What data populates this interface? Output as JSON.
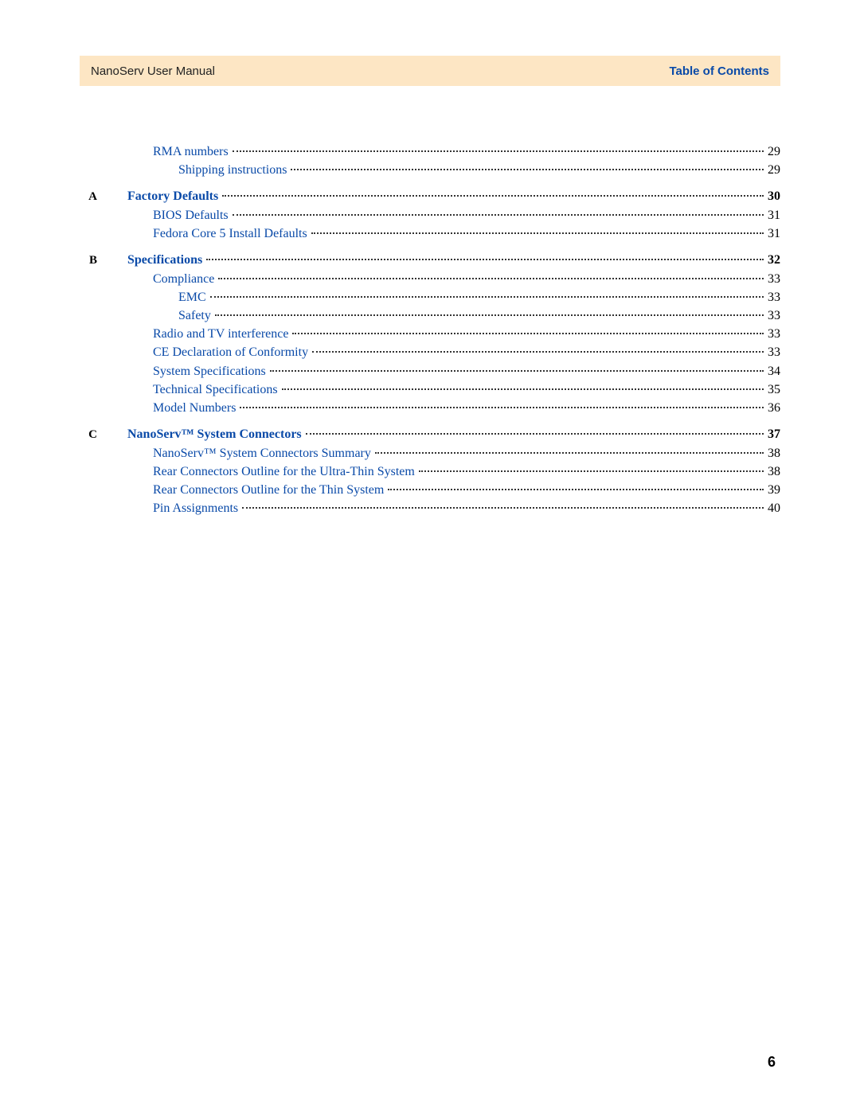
{
  "header": {
    "left": "NanoServ User Manual",
    "right": "Table of Contents"
  },
  "colors": {
    "header_band_bg": "#fde6c4",
    "link_color": "#0a4aa8",
    "text_color": "#000000",
    "page_bg": "#ffffff"
  },
  "page_number": "6",
  "toc": [
    {
      "marker": "",
      "label": "RMA numbers",
      "page": "29",
      "bold": false,
      "indent": 1
    },
    {
      "marker": "",
      "label": "Shipping instructions",
      "page": "29",
      "bold": false,
      "indent": 2
    },
    {
      "gap": true
    },
    {
      "marker": "A",
      "label": "Factory Defaults",
      "page": "30",
      "bold": true,
      "indent": 0
    },
    {
      "marker": "",
      "label": "BIOS Defaults",
      "page": "31",
      "bold": false,
      "indent": 1
    },
    {
      "marker": "",
      "label": "Fedora Core 5 Install Defaults",
      "page": "31",
      "bold": false,
      "indent": 1
    },
    {
      "gap": true
    },
    {
      "marker": "B",
      "label": "Specifications",
      "page": "32",
      "bold": true,
      "indent": 0
    },
    {
      "marker": "",
      "label": "Compliance",
      "page": "33",
      "bold": false,
      "indent": 1
    },
    {
      "marker": "",
      "label": "EMC",
      "page": "33",
      "bold": false,
      "indent": 2
    },
    {
      "marker": "",
      "label": "Safety",
      "page": "33",
      "bold": false,
      "indent": 2
    },
    {
      "marker": "",
      "label": "Radio and TV interference",
      "page": "33",
      "bold": false,
      "indent": 1
    },
    {
      "marker": "",
      "label": "CE Declaration of Conformity",
      "page": "33",
      "bold": false,
      "indent": 1
    },
    {
      "marker": "",
      "label": "System Specifications",
      "page": "34",
      "bold": false,
      "indent": 1
    },
    {
      "marker": "",
      "label": "Technical Specifications",
      "page": "35",
      "bold": false,
      "indent": 1
    },
    {
      "marker": "",
      "label": "Model Numbers",
      "page": "36",
      "bold": false,
      "indent": 1
    },
    {
      "gap": true
    },
    {
      "marker": "C",
      "label": "NanoServ™ System Connectors",
      "page": "37",
      "bold": true,
      "indent": 0
    },
    {
      "marker": "",
      "label": "NanoServ™ System Connectors Summary",
      "page": "38",
      "bold": false,
      "indent": 1
    },
    {
      "marker": "",
      "label": "Rear Connectors Outline for the Ultra-Thin System",
      "page": "38",
      "bold": false,
      "indent": 1
    },
    {
      "marker": "",
      "label": "Rear Connectors Outline for the Thin System",
      "page": "39",
      "bold": false,
      "indent": 1
    },
    {
      "marker": "",
      "label": "Pin Assignments",
      "page": "40",
      "bold": false,
      "indent": 1
    }
  ]
}
